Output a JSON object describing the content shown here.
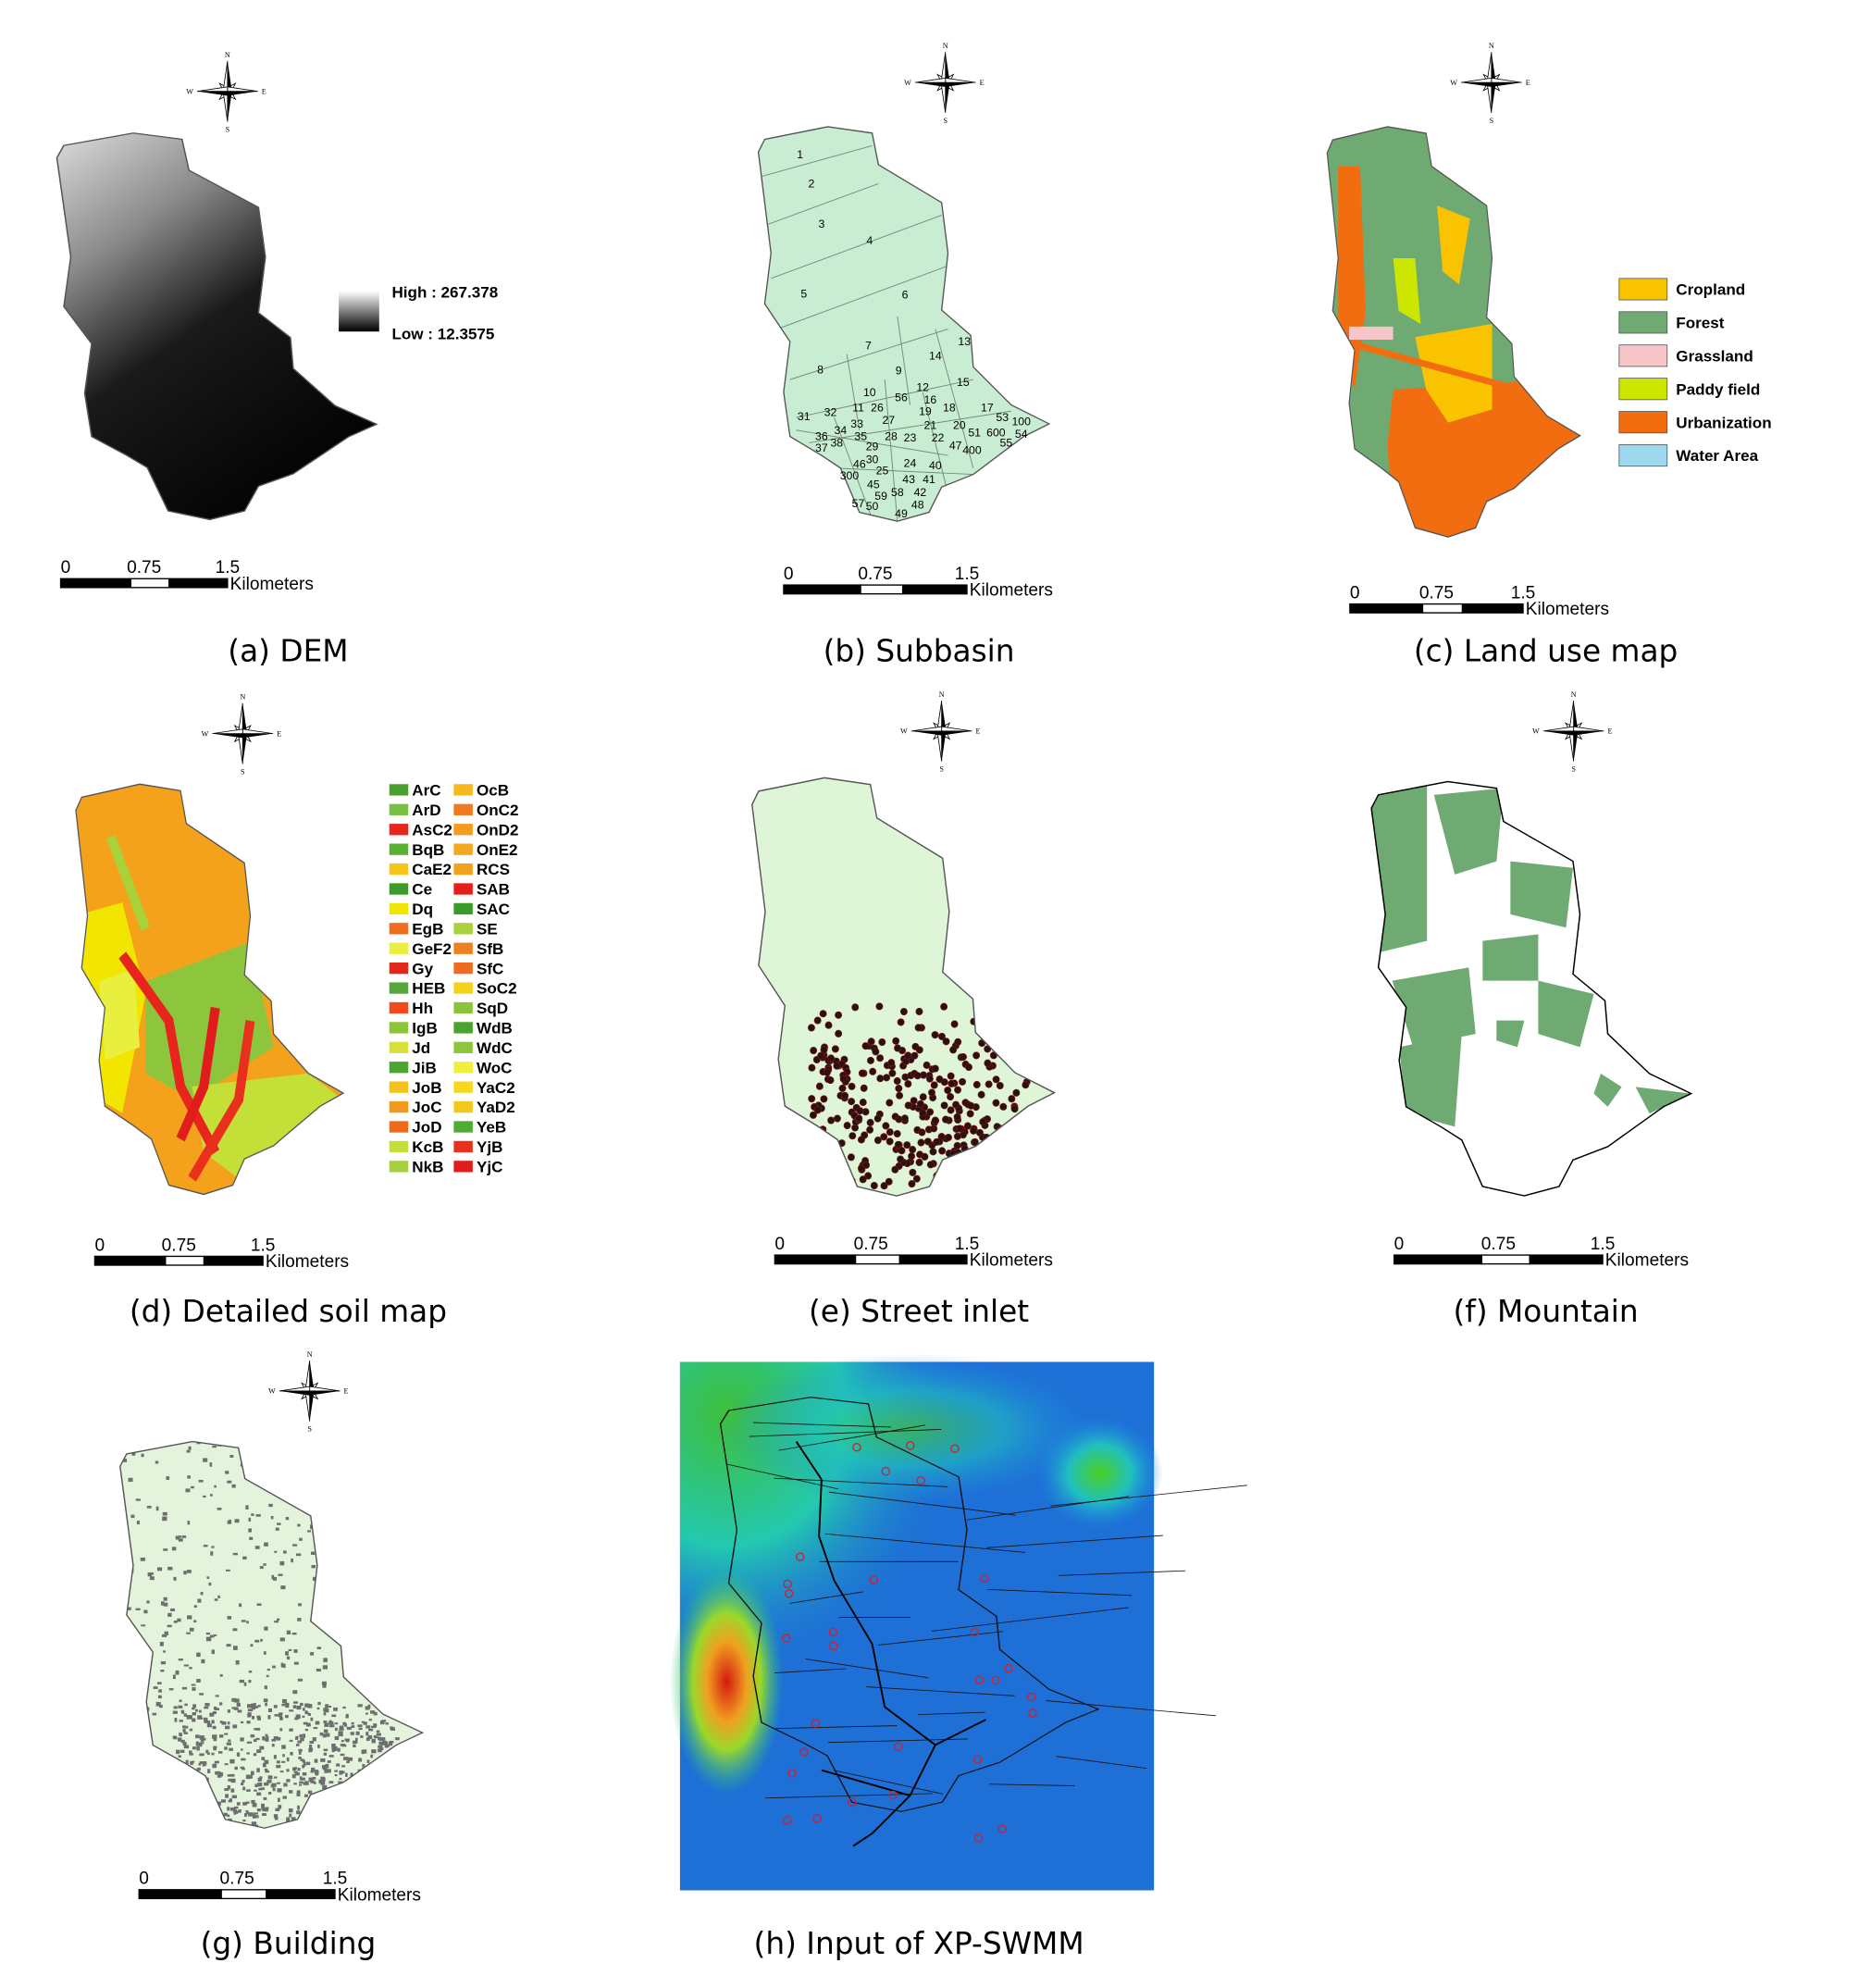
{
  "compass": {
    "n": "N",
    "s": "S",
    "e": "E",
    "w": "W"
  },
  "scale_bar": {
    "ticks": [
      "0",
      "0.75",
      "1.5"
    ],
    "unit": "Kilometers"
  },
  "panels": [
    {
      "caption": "(a) DEM",
      "legend": {
        "high": "High : 267.378",
        "low": "Low : 12.3575"
      }
    },
    {
      "caption": "(b) Subbasin",
      "labels": [
        "1",
        "2",
        "3",
        "4",
        "5",
        "6",
        "7",
        "8",
        "9",
        "10",
        "11",
        "12",
        "13",
        "14",
        "15",
        "16",
        "17",
        "18",
        "19",
        "20",
        "21",
        "22",
        "23",
        "24",
        "25",
        "26",
        "27",
        "28",
        "29",
        "30",
        "31",
        "32",
        "33",
        "34",
        "35",
        "36",
        "37",
        "38",
        "40",
        "41",
        "42",
        "43",
        "45",
        "46",
        "47",
        "48",
        "49",
        "50",
        "51",
        "53",
        "54",
        "55",
        "56",
        "57",
        "58",
        "59",
        "100",
        "300",
        "400",
        "600"
      ]
    },
    {
      "caption": "(c) Land use map",
      "legend": [
        {
          "name": "Cropland",
          "color": "#f9c300"
        },
        {
          "name": "Forest",
          "color": "#6eaa72"
        },
        {
          "name": "Grassland",
          "color": "#f7c6c9"
        },
        {
          "name": "Paddy field",
          "color": "#cde600"
        },
        {
          "name": "Urbanization",
          "color": "#f26d0f"
        },
        {
          "name": "Water Area",
          "color": "#9fd9f0"
        }
      ]
    },
    {
      "caption": "(d) Detailed soil map",
      "legend": [
        {
          "name": "ArC",
          "color": "#4aa02c"
        },
        {
          "name": "ArD",
          "color": "#7ac143"
        },
        {
          "name": "AsC2",
          "color": "#e8251c"
        },
        {
          "name": "BqB",
          "color": "#5ab031"
        },
        {
          "name": "CaE2",
          "color": "#f5c518"
        },
        {
          "name": "Ce",
          "color": "#3c9a2a"
        },
        {
          "name": "Dq",
          "color": "#f2e600"
        },
        {
          "name": "EgB",
          "color": "#f06d1d"
        },
        {
          "name": "GeF2",
          "color": "#e8ef3c"
        },
        {
          "name": "Gy",
          "color": "#e2281b"
        },
        {
          "name": "HEB",
          "color": "#54a83a"
        },
        {
          "name": "Hh",
          "color": "#f04a1e"
        },
        {
          "name": "IgB",
          "color": "#8cc43a"
        },
        {
          "name": "Jd",
          "color": "#d6e23a"
        },
        {
          "name": "JiB",
          "color": "#4ba52e"
        },
        {
          "name": "JoB",
          "color": "#f4c21a"
        },
        {
          "name": "JoC",
          "color": "#f39a1c"
        },
        {
          "name": "JoD",
          "color": "#ef6a1c"
        },
        {
          "name": "KcB",
          "color": "#c4df38"
        },
        {
          "name": "NkB",
          "color": "#a5cf3d"
        },
        {
          "name": "OcB",
          "color": "#f6b81d"
        },
        {
          "name": "OnC2",
          "color": "#ef7a1f"
        },
        {
          "name": "OnD2",
          "color": "#f39c1d"
        },
        {
          "name": "OnE2",
          "color": "#f5a71e"
        },
        {
          "name": "RCS",
          "color": "#f4a21c"
        },
        {
          "name": "SAB",
          "color": "#e61e1b"
        },
        {
          "name": "SAC",
          "color": "#3a9a2a"
        },
        {
          "name": "SE",
          "color": "#a9d23a"
        },
        {
          "name": "SfB",
          "color": "#f07f22"
        },
        {
          "name": "SfC",
          "color": "#ef6b1f"
        },
        {
          "name": "SoC2",
          "color": "#f5d21c"
        },
        {
          "name": "SqD",
          "color": "#8bc43a"
        },
        {
          "name": "WdB",
          "color": "#4aa32e"
        },
        {
          "name": "WdC",
          "color": "#8dc53c"
        },
        {
          "name": "WoC",
          "color": "#f2ef3a"
        },
        {
          "name": "YaC2",
          "color": "#f7d81f"
        },
        {
          "name": "YaD2",
          "color": "#f3c81b"
        },
        {
          "name": "YeB",
          "color": "#4fab32"
        },
        {
          "name": "YjB",
          "color": "#e8301c"
        },
        {
          "name": "YjC",
          "color": "#e01d1c"
        }
      ]
    },
    {
      "caption": "(e) Street inlet"
    },
    {
      "caption": "(f) Mountain"
    },
    {
      "caption": "(g) Building"
    },
    {
      "caption": "(h) Input of XP-SWMM"
    }
  ]
}
